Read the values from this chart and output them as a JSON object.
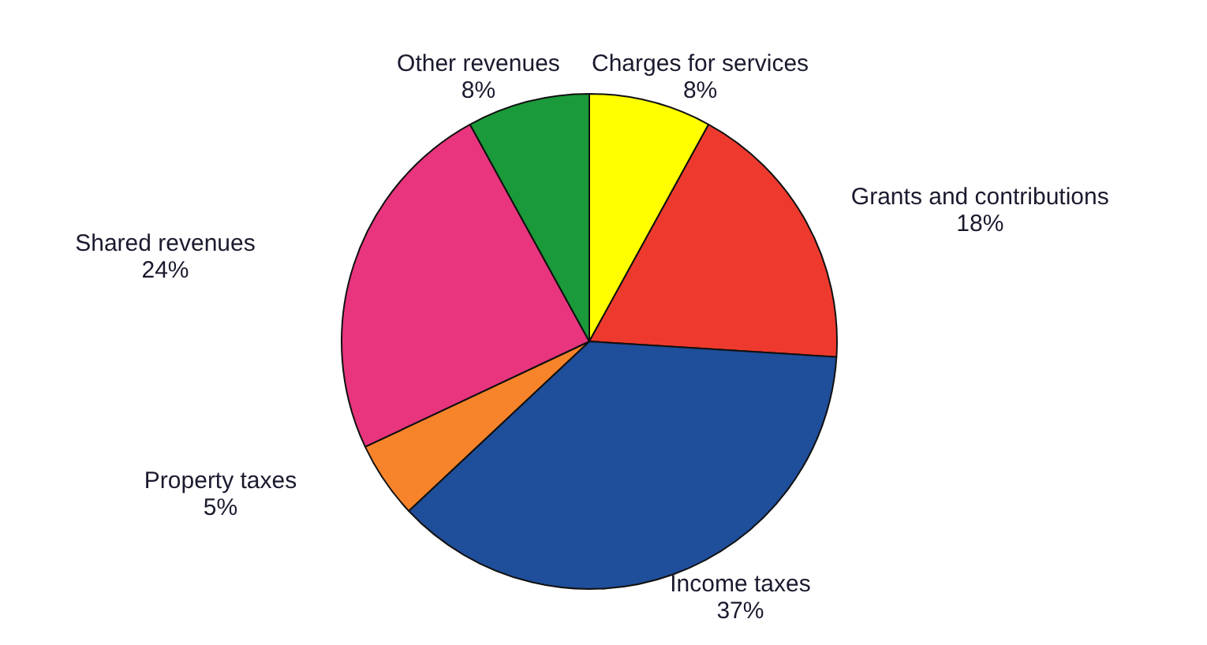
{
  "chart_data": {
    "type": "pie",
    "categories": [
      "Charges for services",
      "Grants and contributions",
      "Income taxes",
      "Property taxes",
      "Shared revenues",
      "Other revenues"
    ],
    "values": [
      8,
      18,
      37,
      5,
      24,
      8
    ],
    "colors": [
      "#ffff00",
      "#ee3a2e",
      "#1f4e9a",
      "#f7842a",
      "#e8357e",
      "#1a9a3a"
    ],
    "value_labels": [
      "8%",
      "18%",
      "37%",
      "5%",
      "24%",
      "8%"
    ]
  }
}
